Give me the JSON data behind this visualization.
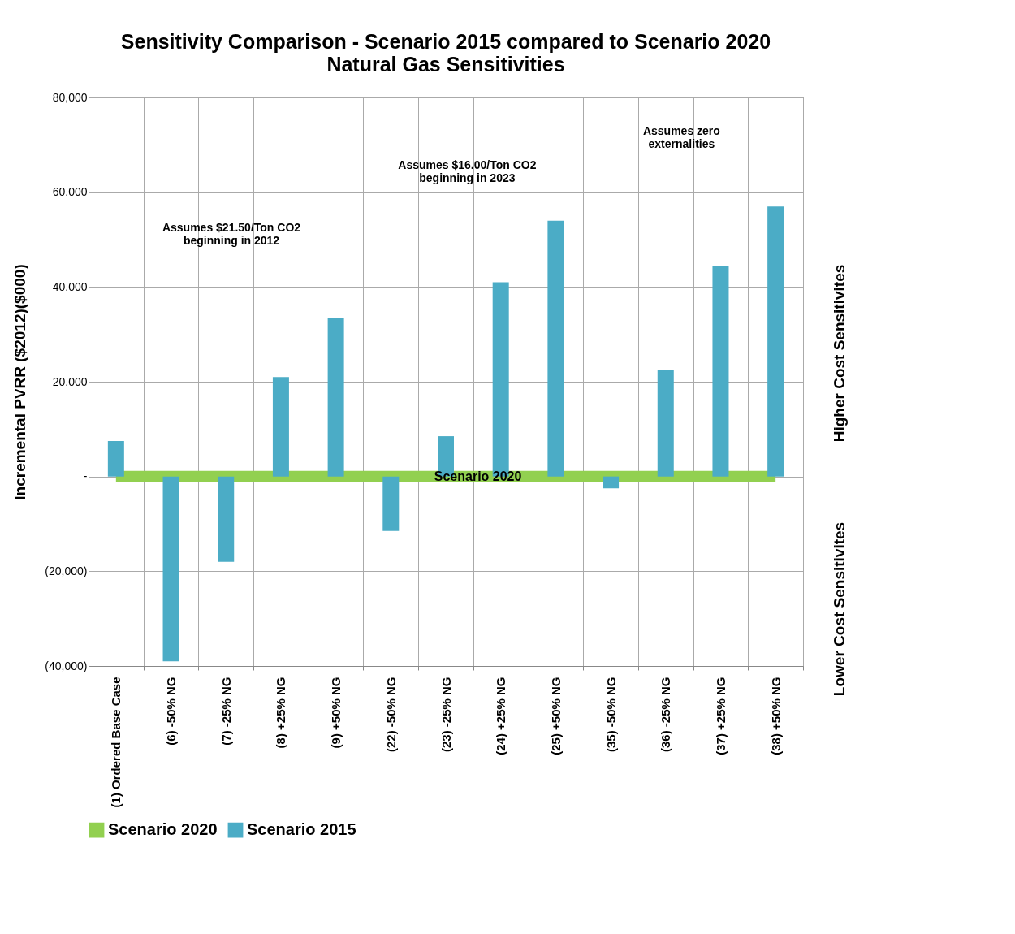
{
  "chart_data": {
    "type": "bar",
    "title": "Sensitivity Comparison - Scenario 2015 compared to Scenario 2020",
    "subtitle": "Natural Gas Sensitivities",
    "ylabel": "Incremental PVRR ($2012)($000)",
    "categories": [
      "(1) Ordered Base Case",
      "(6) -50% NG",
      "(7) -25% NG",
      "(8) +25% NG",
      "(9) +50% NG",
      "(22) -50% NG",
      "(23) -25% NG",
      "(24) +25% NG",
      "(25) +50% NG",
      "(35) -50% NG",
      "(36) -25% NG",
      "(37) +25% NG",
      "(38) +50% NG"
    ],
    "series": [
      {
        "name": "Scenario 2020",
        "type": "line",
        "color": "#92d050",
        "values": [
          0,
          0,
          0,
          0,
          0,
          0,
          0,
          0,
          0,
          0,
          0,
          0,
          0
        ]
      },
      {
        "name": "Scenario 2015",
        "color": "#4bacc6",
        "values": [
          7500,
          -39000,
          -18000,
          21000,
          33500,
          -11500,
          8500,
          41000,
          54000,
          -2500,
          22500,
          44500,
          57000
        ]
      }
    ],
    "ylim": [
      -40000,
      80000
    ],
    "yticks": [
      {
        "value": -40000,
        "label": "(40,000)"
      },
      {
        "value": -20000,
        "label": "(20,000)"
      },
      {
        "value": 0,
        "label": "-"
      },
      {
        "value": 20000,
        "label": "20,000"
      },
      {
        "value": 40000,
        "label": "40,000"
      },
      {
        "value": 60000,
        "label": "60,000"
      },
      {
        "value": 80000,
        "label": "80,000"
      }
    ],
    "grid": true,
    "legend": "bottom",
    "annotations": [
      {
        "text": "Scenario 2020",
        "y": 0
      },
      "Assumes $21.50/Ton CO2\nbeginning in 2012",
      "Assumes $16.00/Ton CO2\nbeginning in 2023",
      "Assumes zero\nexternalities",
      "Higher Cost Sensitivites",
      "Lower Cost Sensitivites"
    ]
  }
}
